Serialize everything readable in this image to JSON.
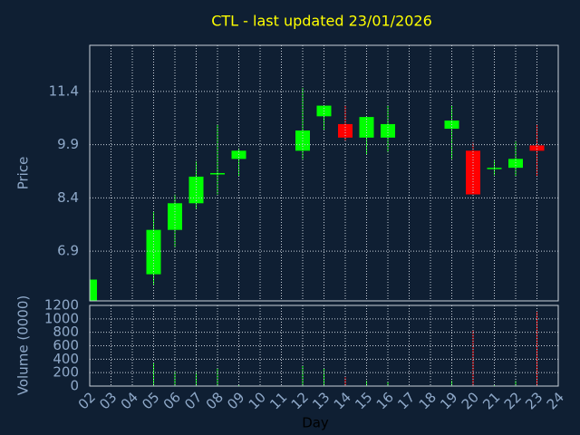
{
  "chart_data": {
    "type": "candlestick",
    "title": "CTL - last updated 23/01/2026",
    "ylabel": "Price",
    "y2label": "Volume (0000)",
    "xlabel": "Day",
    "categories": [
      "02",
      "03",
      "04",
      "05",
      "06",
      "07",
      "08",
      "09",
      "10",
      "11",
      "12",
      "13",
      "14",
      "15",
      "16",
      "17",
      "18",
      "19",
      "20",
      "21",
      "22",
      "23",
      "24"
    ],
    "open": [
      5.5,
      null,
      null,
      6.25,
      7.5,
      8.25,
      9.07,
      9.5,
      null,
      null,
      9.73,
      10.7,
      10.48,
      10.1,
      10.1,
      null,
      null,
      10.35,
      9.73,
      9.23,
      9.25,
      9.88,
      null
    ],
    "high": [
      6.1,
      null,
      null,
      8.0,
      8.5,
      9.43,
      10.48,
      9.8,
      null,
      null,
      11.5,
      11.0,
      11.0,
      10.7,
      11.0,
      null,
      null,
      11.0,
      9.96,
      9.45,
      9.98,
      10.48,
      null
    ],
    "low": [
      5.5,
      null,
      null,
      5.94,
      7.0,
      8.1,
      8.5,
      9.0,
      null,
      null,
      9.5,
      10.3,
      10.0,
      9.63,
      9.68,
      null,
      null,
      9.5,
      8.5,
      9.04,
      9.0,
      9.0,
      null
    ],
    "close": [
      6.1,
      null,
      null,
      7.5,
      8.25,
      9.0,
      9.1,
      9.73,
      null,
      null,
      10.3,
      11.0,
      10.1,
      10.68,
      10.48,
      null,
      null,
      10.58,
      8.5,
      9.25,
      9.5,
      9.73,
      null
    ],
    "volume": [
      null,
      null,
      null,
      340,
      210,
      210,
      270,
      20,
      null,
      null,
      310,
      270,
      130,
      80,
      60,
      null,
      null,
      80,
      830,
      20,
      80,
      1100,
      null
    ],
    "ylim": [
      5.5,
      12.7
    ],
    "yticks": [
      6.9,
      8.4,
      9.9,
      11.4
    ],
    "y2lim": [
      0,
      1200
    ],
    "y2ticks": [
      0,
      200,
      400,
      600,
      800,
      1000,
      1200
    ],
    "up_color": "#00ff00",
    "down_color": "#ff0000",
    "grid": true
  }
}
